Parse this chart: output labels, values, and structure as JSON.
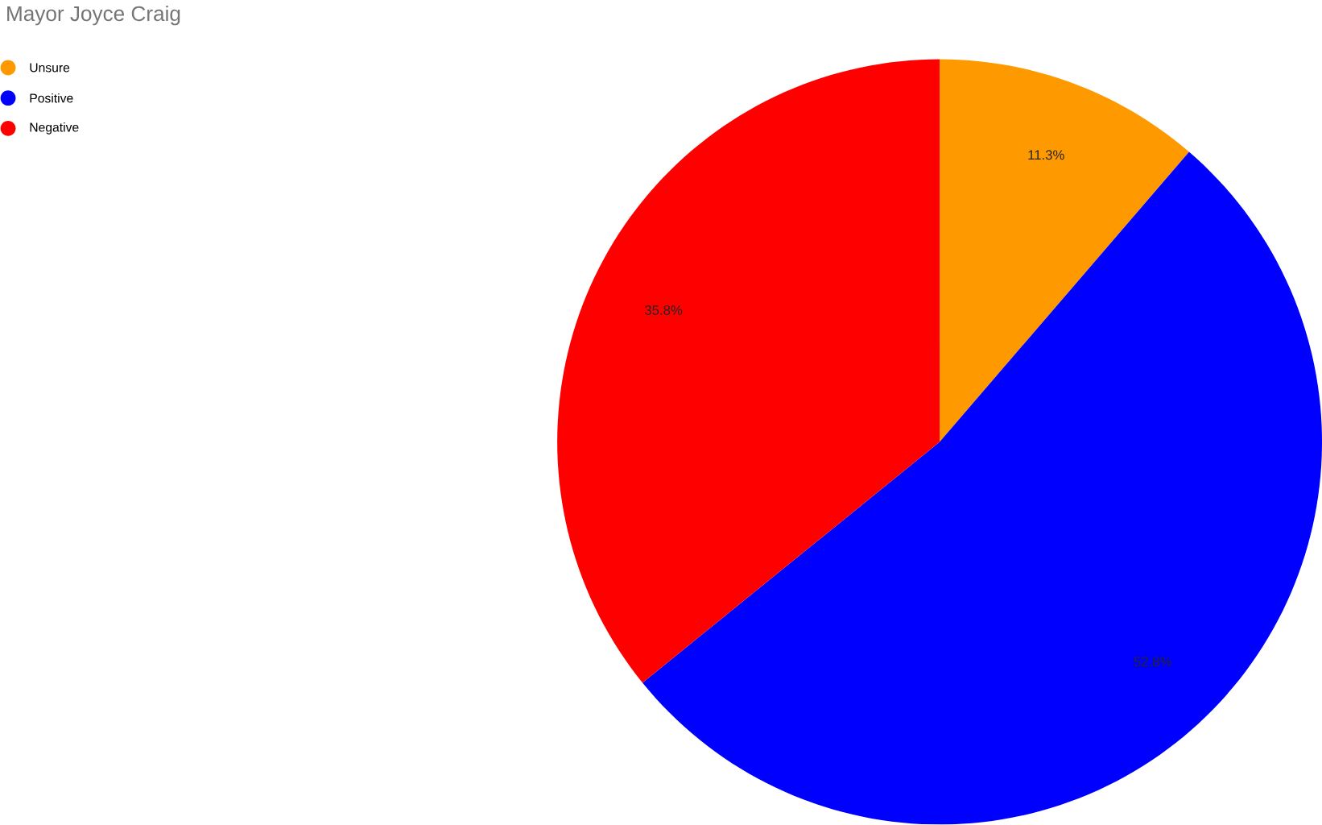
{
  "chart_data": {
    "type": "pie",
    "title": "Mayor Joyce Craig",
    "categories": [
      "Unsure",
      "Positive",
      "Negative"
    ],
    "values": [
      11.3,
      52.8,
      35.8
    ],
    "colors": [
      "#ff9900",
      "#0000ff",
      "#ff0000"
    ],
    "value_labels": [
      "11.3%",
      "52.8%",
      "35.8%"
    ],
    "legend": "top left"
  }
}
